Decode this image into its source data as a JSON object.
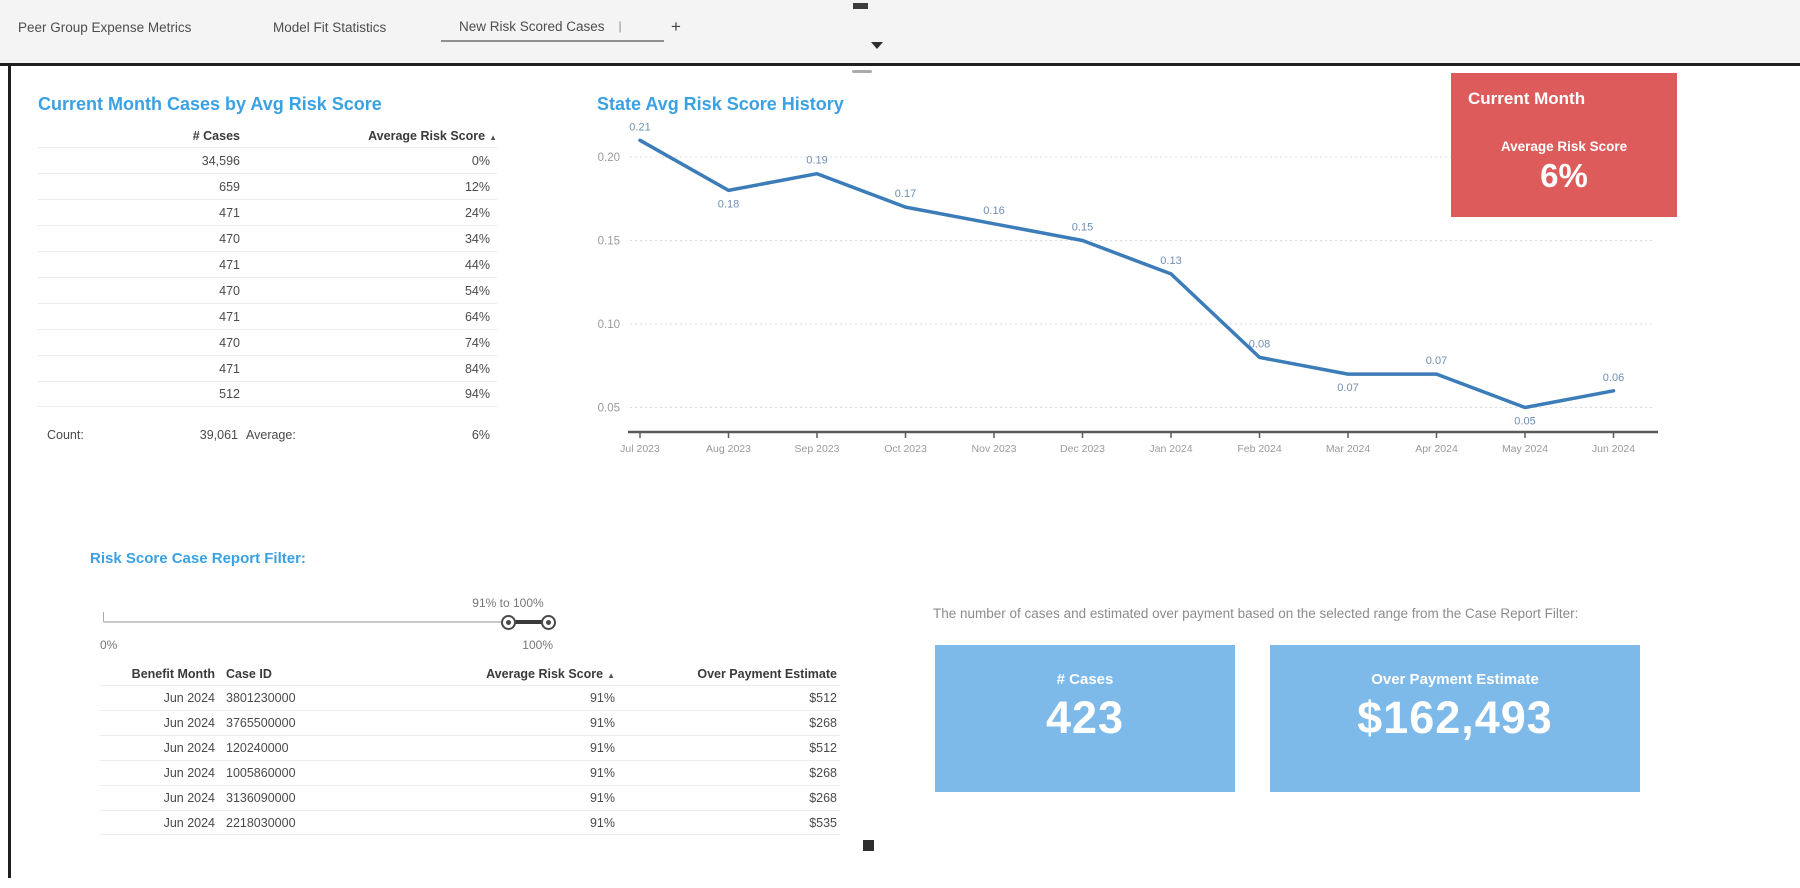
{
  "tabs": {
    "items": [
      {
        "label": "Peer Group Expense Metrics",
        "active": false
      },
      {
        "label": "Model Fit Statistics",
        "active": false
      },
      {
        "label": "New Risk Scored Cases",
        "suffix": "|",
        "active": true
      }
    ],
    "add_label": "+"
  },
  "cases_table": {
    "title": "Current Month Cases by Avg Risk Score",
    "columns": [
      "# Cases",
      "Average Risk Score"
    ],
    "sort_icon": "▲",
    "rows": [
      [
        "34,596",
        "0%"
      ],
      [
        "659",
        "12%"
      ],
      [
        "471",
        "24%"
      ],
      [
        "470",
        "34%"
      ],
      [
        "471",
        "44%"
      ],
      [
        "470",
        "54%"
      ],
      [
        "471",
        "64%"
      ],
      [
        "470",
        "74%"
      ],
      [
        "471",
        "84%"
      ],
      [
        "512",
        "94%"
      ]
    ],
    "footer": {
      "count_label": "Count:",
      "count_value": "39,061",
      "avg_label": "Average:",
      "avg_value": "6%"
    }
  },
  "chart_data": {
    "type": "line",
    "title": "State Avg Risk Score History",
    "x": [
      "Jul 2023",
      "Aug 2023",
      "Sep 2023",
      "Oct 2023",
      "Nov 2023",
      "Dec 2023",
      "Jan 2024",
      "Feb 2024",
      "Mar 2024",
      "Apr 2024",
      "May 2024",
      "Jun 2024"
    ],
    "series": [
      {
        "name": "State Avg Risk Score",
        "values": [
          0.21,
          0.18,
          0.19,
          0.17,
          0.16,
          0.15,
          0.13,
          0.08,
          0.07,
          0.07,
          0.05,
          0.06
        ]
      }
    ],
    "data_labels": [
      "0.21",
      "0.18",
      "0.19",
      "0.17",
      "0.16",
      "0.15",
      "0.13",
      "0.08",
      "0.07",
      "0.07",
      "0.05",
      "0.06"
    ],
    "label_positions": [
      "above",
      "below",
      "above",
      "above",
      "above",
      "above",
      "above",
      "above",
      "below",
      "above",
      "below",
      "above"
    ],
    "y_ticks": [
      "0.20",
      "0.15",
      "0.10",
      "0.05"
    ],
    "y_tick_values": [
      0.2,
      0.15,
      0.1,
      0.05
    ],
    "ylim": [
      0.04,
      0.22
    ],
    "grid": "horizontal-dotted",
    "legend": "none",
    "line_color": "#3c7cb8",
    "label_color": "#6f8fb2"
  },
  "current_month_card": {
    "title": "Current Month",
    "metric_label": "Average Risk Score",
    "metric_value": "6%",
    "bg_color": "#dd5b5b"
  },
  "filter": {
    "title": "Risk Score Case Report Filter:",
    "range_label": "91% to 100%",
    "min_label": "0%",
    "max_label": "100%"
  },
  "report_table": {
    "columns": [
      "Benefit Month",
      "Case ID",
      "Average Risk Score",
      "Over Payment Estimate"
    ],
    "sort_icon": "▲",
    "sorted_column": "Average Risk Score",
    "rows": [
      [
        "Jun 2024",
        "3801230000",
        "91%",
        "$512"
      ],
      [
        "Jun 2024",
        "3765500000",
        "91%",
        "$268"
      ],
      [
        "Jun 2024",
        "120240000",
        "91%",
        "$512"
      ],
      [
        "Jun 2024",
        "1005860000",
        "91%",
        "$268"
      ],
      [
        "Jun 2024",
        "3136090000",
        "91%",
        "$268"
      ],
      [
        "Jun 2024",
        "2218030000",
        "91%",
        "$535"
      ]
    ]
  },
  "summary": {
    "description": "The number of cases and estimated over payment based on the selected range from the Case Report Filter:",
    "cards": [
      {
        "label": "# Cases",
        "value": "423"
      },
      {
        "label": "Over Payment Estimate",
        "value": "$162,493"
      }
    ],
    "card_color": "#7db9e9"
  }
}
